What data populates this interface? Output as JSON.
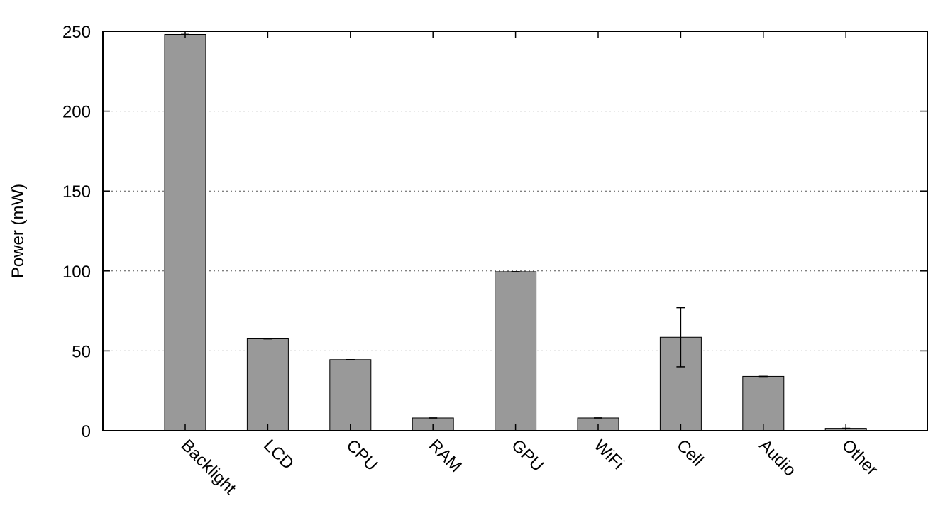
{
  "chart_data": {
    "type": "bar",
    "title": "",
    "xlabel": "",
    "ylabel": "Power (mW)",
    "ylim": [
      0,
      250
    ],
    "yticks": [
      0,
      50,
      100,
      150,
      200,
      250
    ],
    "grid": "horizontal dotted",
    "bar_color": "#999999",
    "categories": [
      "Backlight",
      "LCD",
      "CPU",
      "RAM",
      "GPU",
      "WiFi",
      "Cell",
      "Audio",
      "Other"
    ],
    "values": [
      248,
      57.5,
      44.5,
      8,
      99.5,
      8,
      58.5,
      34,
      1.5
    ],
    "error_low": [
      248,
      57.5,
      44.5,
      8,
      99.5,
      8,
      40,
      34,
      1.5
    ],
    "error_high": [
      248,
      57.5,
      44.5,
      8,
      99.5,
      8,
      77,
      34,
      1.5
    ]
  }
}
